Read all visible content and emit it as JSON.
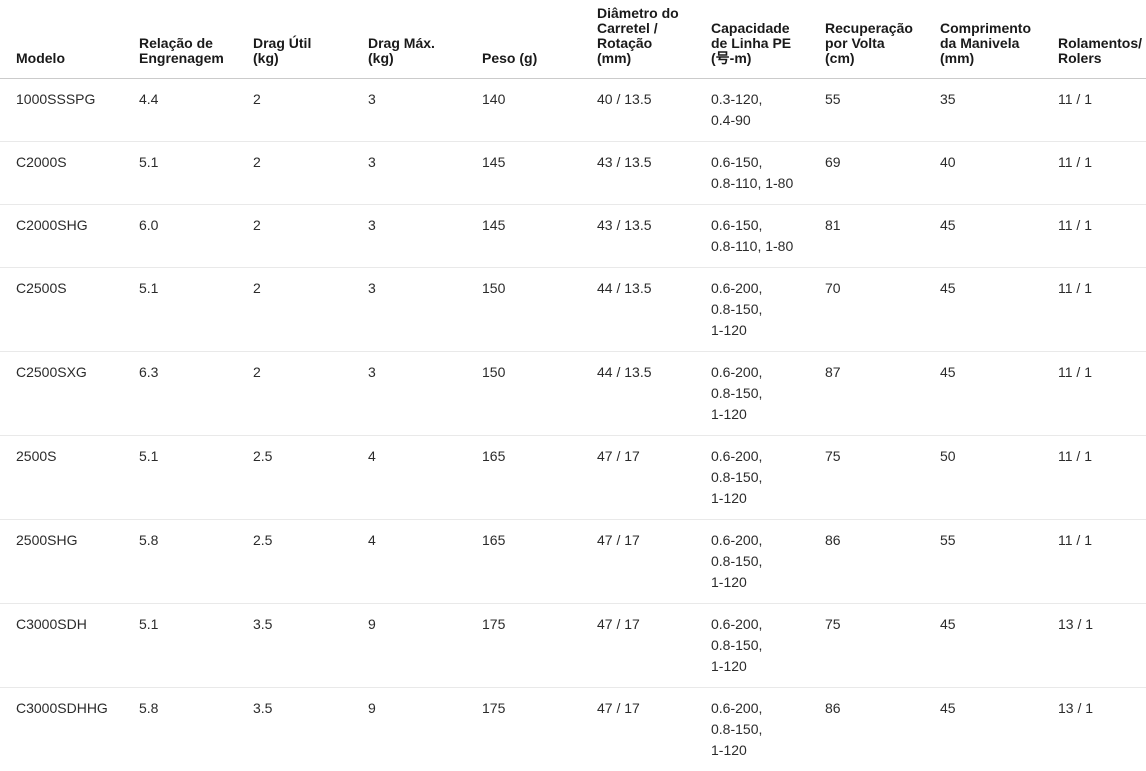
{
  "colors": {
    "background": "#ffffff",
    "header_rule": "#cbcbcb",
    "row_rule": "#e9e9e9",
    "header_text": "#1a1a1a",
    "body_text": "#2b2b2b"
  },
  "table": {
    "columns": [
      {
        "key": "modelo",
        "label": "Modelo"
      },
      {
        "key": "relacao-engrenagem",
        "label": "Relação de\nEngrenagem"
      },
      {
        "key": "drag-util",
        "label": "Drag Útil\n(kg)"
      },
      {
        "key": "drag-max",
        "label": "Drag Máx.\n(kg)"
      },
      {
        "key": "peso",
        "label": "Peso (g)"
      },
      {
        "key": "diametro-carretel",
        "label": "Diâmetro do\nCarretel /\nRotação\n(mm)"
      },
      {
        "key": "capacidade-linha-pe",
        "label": "Capacidade\nde Linha PE\n(号-m)"
      },
      {
        "key": "recuperacao-volta",
        "label": "Recuperação\npor Volta\n(cm)"
      },
      {
        "key": "comprimento-manivela",
        "label": "Comprimento\nda Manivela\n(mm)"
      },
      {
        "key": "rolamentos-rolers",
        "label": "Rolamentos/\nRolers"
      }
    ],
    "rows": [
      [
        "1000SSSPG",
        "4.4",
        "2",
        "3",
        "140",
        "40 / 13.5",
        "0.3-120,\n0.4-90",
        "55",
        "35",
        "11 / 1"
      ],
      [
        "C2000S",
        "5.1",
        "2",
        "3",
        "145",
        "43 / 13.5",
        "0.6-150,\n0.8-110, 1-80",
        "69",
        "40",
        "11 / 1"
      ],
      [
        "C2000SHG",
        "6.0",
        "2",
        "3",
        "145",
        "43 / 13.5",
        "0.6-150,\n0.8-110, 1-80",
        "81",
        "45",
        "11 / 1"
      ],
      [
        "C2500S",
        "5.1",
        "2",
        "3",
        "150",
        "44 / 13.5",
        "0.6-200,\n0.8-150,\n1-120",
        "70",
        "45",
        "11 / 1"
      ],
      [
        "C2500SXG",
        "6.3",
        "2",
        "3",
        "150",
        "44 / 13.5",
        "0.6-200,\n0.8-150,\n1-120",
        "87",
        "45",
        "11 / 1"
      ],
      [
        "2500S",
        "5.1",
        "2.5",
        "4",
        "165",
        "47 / 17",
        "0.6-200,\n0.8-150,\n1-120",
        "75",
        "50",
        "11 / 1"
      ],
      [
        "2500SHG",
        "5.8",
        "2.5",
        "4",
        "165",
        "47 / 17",
        "0.6-200,\n0.8-150,\n1-120",
        "86",
        "55",
        "11 / 1"
      ],
      [
        "C3000SDH",
        "5.1",
        "3.5",
        "9",
        "175",
        "47 / 17",
        "0.6-200,\n0.8-150,\n1-120",
        "75",
        "45",
        "13 / 1"
      ],
      [
        "C3000SDHHG",
        "5.8",
        "3.5",
        "9",
        "175",
        "47 / 17",
        "0.6-200,\n0.8-150,\n1-120",
        "86",
        "45",
        "13 / 1"
      ]
    ]
  }
}
